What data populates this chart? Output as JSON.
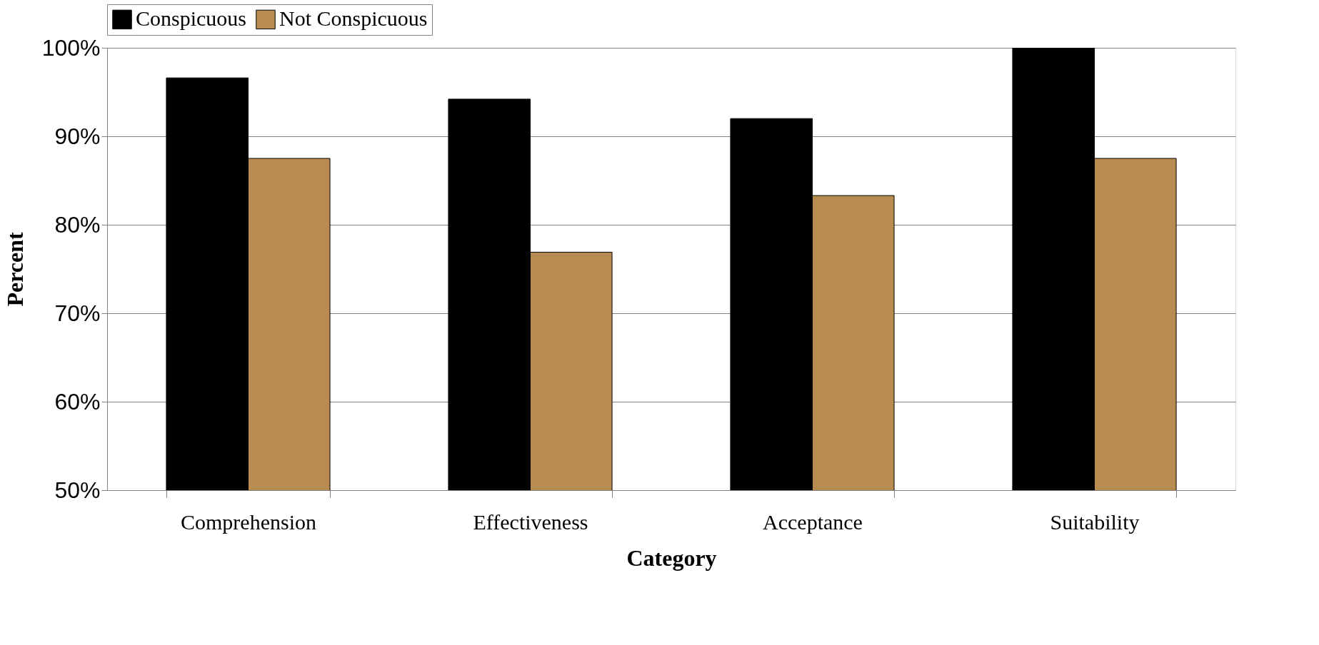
{
  "chart_data": {
    "type": "bar",
    "xlabel": "Category",
    "ylabel": "Percent",
    "categories": [
      "Comprehension",
      "Effectiveness",
      "Acceptance",
      "Suitability"
    ],
    "series": [
      {
        "name": "Conspicuous",
        "color": "#000000",
        "values": [
          96.6,
          94.2,
          92.0,
          100
        ]
      },
      {
        "name": "Not Conspicuous",
        "color": "#b88c51",
        "values": [
          87.5,
          76.9,
          83.3,
          87.5
        ]
      }
    ],
    "ylim": [
      50,
      100
    ],
    "yticks": [
      {
        "value": 50,
        "label": "50%"
      },
      {
        "value": 60,
        "label": "60%"
      },
      {
        "value": 70,
        "label": "70%"
      },
      {
        "value": 80,
        "label": "80%"
      },
      {
        "value": 90,
        "label": "90%"
      },
      {
        "value": 100,
        "label": "100%"
      }
    ],
    "grid": "y",
    "legend": "top"
  }
}
